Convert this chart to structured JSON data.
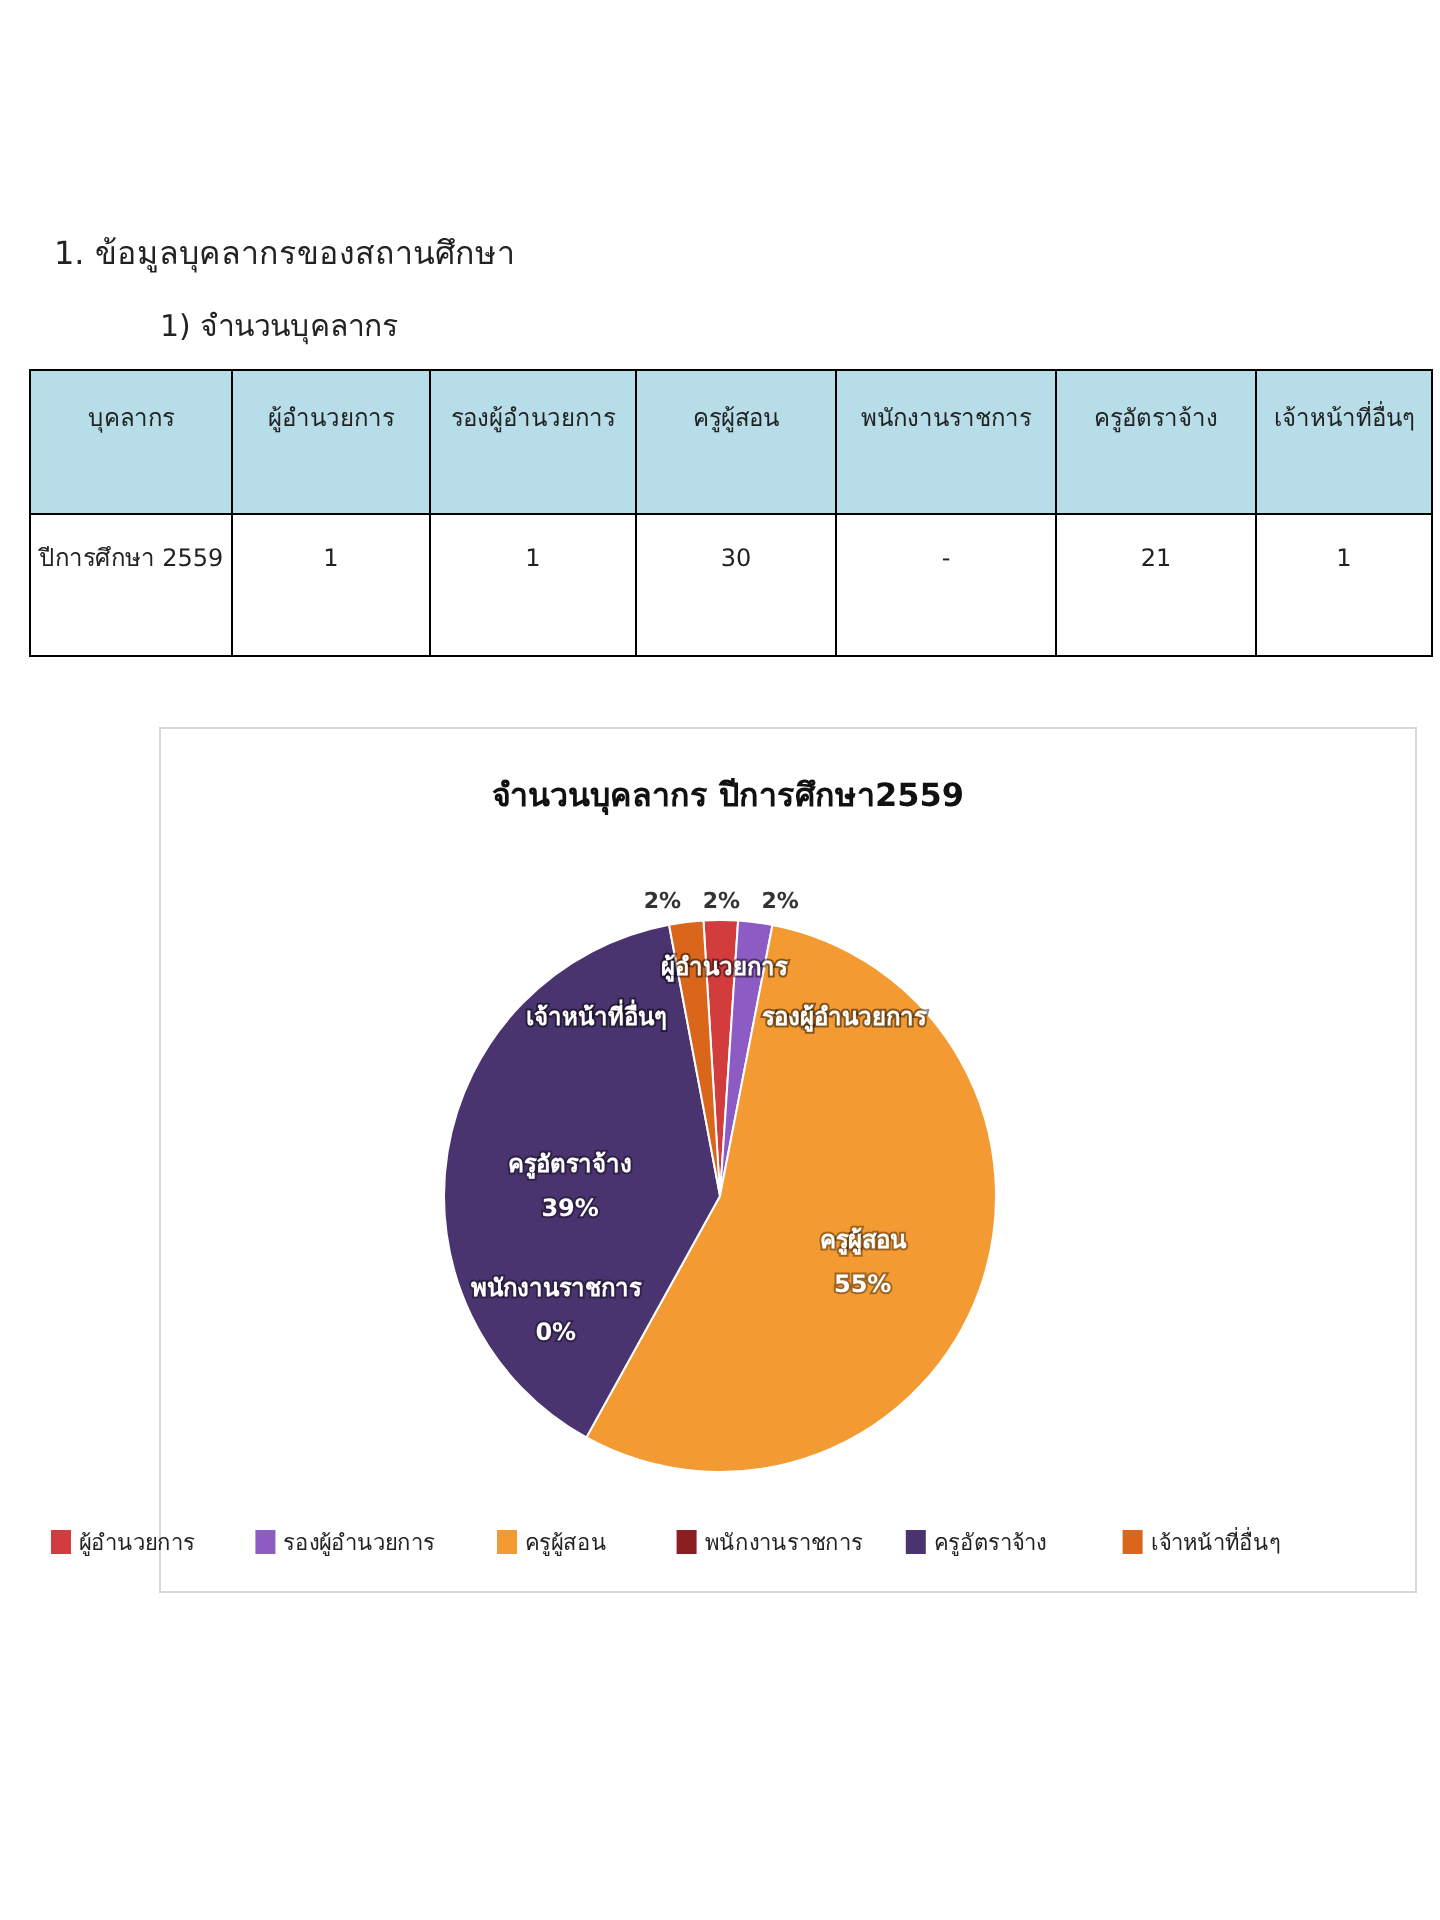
{
  "chart_data": {
    "type": "pie",
    "title": "จำนวนบุคลากร  ปีการศึกษา2559",
    "categories": [
      "ผู้อำนวยการ",
      "รองผู้อำนวยการ",
      "ครูผู้สอน",
      "พนักงานราชการ",
      "ครูอัตราจ้าง",
      "เจ้าหน้าที่อื่นๆ"
    ],
    "values": [
      2,
      2,
      55,
      0,
      39,
      2
    ],
    "value_labels": [
      "2%",
      "2%",
      "55%",
      "0%",
      "39%",
      "2%"
    ],
    "colors": [
      "#d23c3c",
      "#8c5cc4",
      "#f39a32",
      "#8b1e22",
      "#4a3470",
      "#d9661a"
    ],
    "legend": "bottom",
    "annotations": [
      "1. ข้อมูลบุคลากรของสถานศึกษา",
      "1)  จำนวนบุคลากร",
      "บุคลากร",
      "ปีการศึกษา 2559",
      "1",
      "1",
      "30",
      "-",
      "21",
      "1"
    ]
  }
}
